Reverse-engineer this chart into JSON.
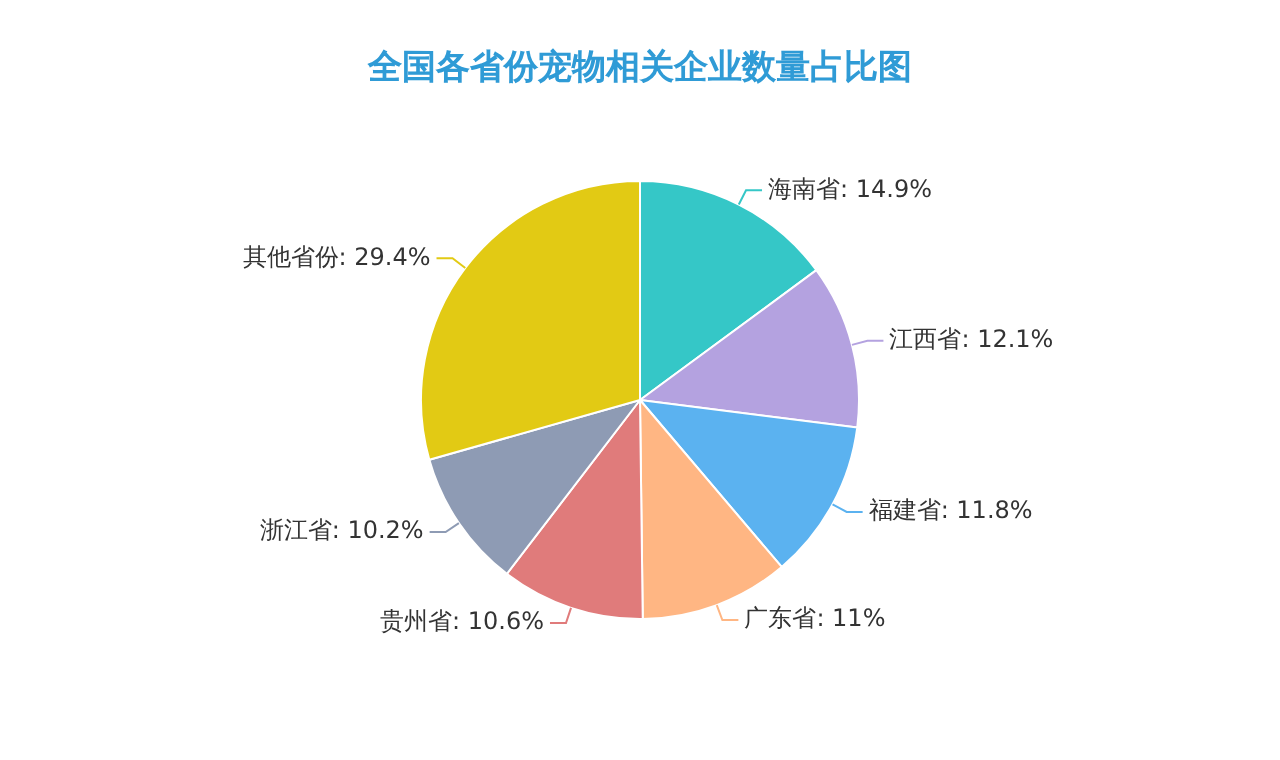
{
  "chart_data": {
    "type": "pie",
    "title": "全国各省份宠物相关企业数量占比图",
    "categories": [
      "海南省",
      "江西省",
      "福建省",
      "广东省",
      "贵州省",
      "浙江省",
      "其他省份"
    ],
    "values": [
      14.9,
      12.1,
      11.8,
      11,
      10.6,
      10.2,
      29.4
    ],
    "colors": [
      "#35c7c7",
      "#b4a2e0",
      "#5bb2f0",
      "#ffb683",
      "#e07b7b",
      "#8e9bb4",
      "#e2ca14"
    ],
    "value_labels": [
      "14.9%",
      "12.1%",
      "11.8%",
      "11%",
      "10.6%",
      "10.2%",
      "29.4%"
    ],
    "legend": false
  }
}
